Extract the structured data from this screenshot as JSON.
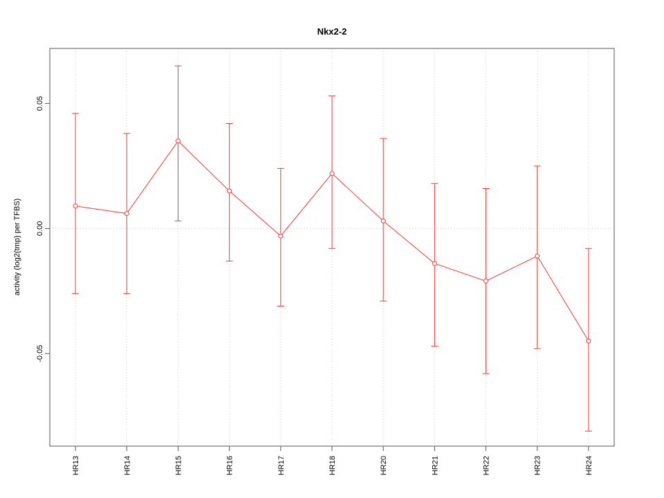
{
  "chart_data": {
    "type": "line",
    "title": "Nkx2-2",
    "xlabel": "",
    "ylabel": "activity (log2(tmp) per TFBS)",
    "categories": [
      "HR13",
      "HR14",
      "HR15",
      "HR16",
      "HR17",
      "HR18",
      "HR20",
      "HR21",
      "HR22",
      "HR23",
      "HR24"
    ],
    "series": [
      {
        "name": "activity",
        "values": [
          0.009,
          0.006,
          0.035,
          0.015,
          -0.003,
          0.022,
          0.003,
          -0.014,
          -0.021,
          -0.011,
          -0.045
        ],
        "err_hi": [
          0.046,
          0.038,
          0.065,
          0.042,
          0.024,
          0.053,
          0.036,
          0.018,
          0.016,
          0.025,
          -0.008
        ],
        "err_lo": [
          -0.026,
          -0.026,
          0.003,
          -0.013,
          -0.031,
          -0.008,
          -0.029,
          -0.047,
          -0.058,
          -0.048,
          -0.081
        ]
      }
    ],
    "ylim": [
      -0.087,
      0.072
    ],
    "yticks": [
      0.05,
      0,
      -0.05
    ],
    "ytick_labels": [
      "0.05",
      "0.00",
      "-0.05"
    ],
    "zero_line": true,
    "grid": "dotted vertical line at each category, dotted horizontal line at y=0",
    "legend": "none",
    "colors": {
      "series": "#ff3333",
      "grid": "#cccccc",
      "frame": "#555555",
      "text": "#000000"
    }
  }
}
